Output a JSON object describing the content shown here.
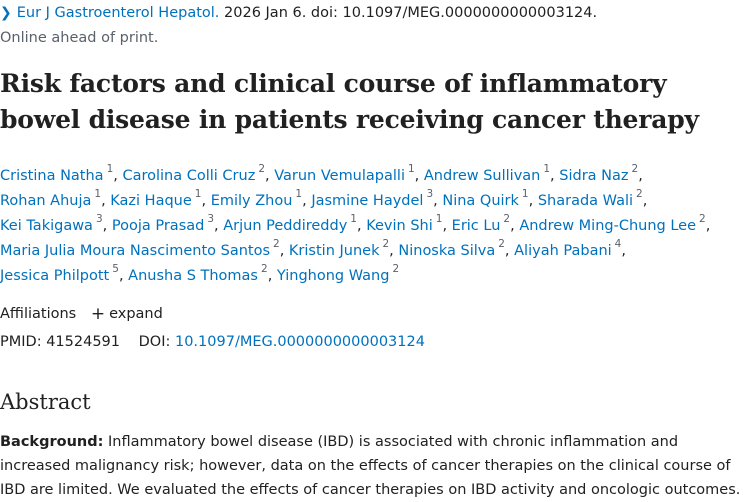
{
  "citation": {
    "journal_name": "Eur J Gastroenterol Hepatol.",
    "details": "2026 Jan 6. doi: 10.1097/MEG.0000000000003124.",
    "status": "Online ahead of print."
  },
  "title": "Risk factors and clinical course of inflammatory bowel disease in patients receiving cancer therapy",
  "authors": [
    {
      "name": "Cristina Natha",
      "sup": "1"
    },
    {
      "name": "Carolina Colli Cruz",
      "sup": "2"
    },
    {
      "name": "Varun Vemulapalli",
      "sup": "1"
    },
    {
      "name": "Andrew Sullivan",
      "sup": "1"
    },
    {
      "name": "Sidra Naz",
      "sup": "2"
    },
    {
      "name": "Rohan Ahuja",
      "sup": "1"
    },
    {
      "name": "Kazi Haque",
      "sup": "1"
    },
    {
      "name": "Emily Zhou",
      "sup": "1"
    },
    {
      "name": "Jasmine Haydel",
      "sup": "3"
    },
    {
      "name": "Nina Quirk",
      "sup": "1"
    },
    {
      "name": "Sharada Wali",
      "sup": "2"
    },
    {
      "name": "Kei Takigawa",
      "sup": "3"
    },
    {
      "name": "Pooja Prasad",
      "sup": "3"
    },
    {
      "name": "Arjun Peddireddy",
      "sup": "1"
    },
    {
      "name": "Kevin Shi",
      "sup": "1"
    },
    {
      "name": "Eric Lu",
      "sup": "2"
    },
    {
      "name": "Andrew Ming-Chung Lee",
      "sup": "2"
    },
    {
      "name": "Maria Julia Moura Nascimento Santos",
      "sup": "2"
    },
    {
      "name": "Kristin Junek",
      "sup": "2"
    },
    {
      "name": "Ninoska Silva",
      "sup": "2"
    },
    {
      "name": "Aliyah Pabani",
      "sup": "4"
    },
    {
      "name": "Jessica Philpott",
      "sup": "5"
    },
    {
      "name": "Anusha S Thomas",
      "sup": "2"
    },
    {
      "name": "Yinghong Wang",
      "sup": "2"
    }
  ],
  "affiliations": {
    "label": "Affiliations",
    "toggle_icon": "plus-icon",
    "toggle_label": "expand"
  },
  "identifiers": {
    "pmid_label": "PMID:",
    "pmid_value": "41524591",
    "doi_label": "DOI:",
    "doi_value": "10.1097/MEG.0000000000003124"
  },
  "abstract": {
    "heading": "Abstract",
    "section_label": "Background:",
    "section_text": "Inflammatory bowel disease (IBD) is associated with chronic inflammation and increased malignancy risk; however, data on the effects of cancer therapies on the clinical course of IBD are limited. We evaluated the effects of cancer therapies on IBD activity and oncologic outcomes."
  },
  "colors": {
    "link": "#0071bc",
    "text": "#212121",
    "muted": "#5b616b"
  }
}
